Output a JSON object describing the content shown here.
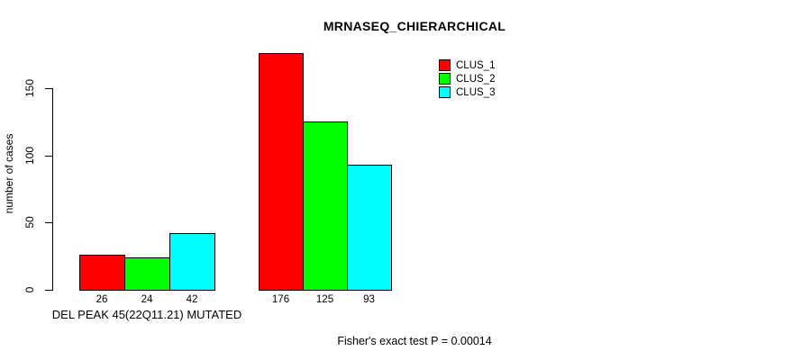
{
  "chart_data": {
    "type": "bar",
    "title": "MRNASEQ_CHIERARCHICAL",
    "ylabel": "number of cases",
    "xlabel": "",
    "categories": [
      "DEL PEAK 45(22Q11.21) MUTATED",
      ""
    ],
    "series": [
      {
        "name": "CLUS_1",
        "color": "#ff0000",
        "values": [
          26,
          176
        ]
      },
      {
        "name": "CLUS_2",
        "color": "#00ff00",
        "values": [
          24,
          125
        ]
      },
      {
        "name": "CLUS_3",
        "color": "#00ffff",
        "values": [
          42,
          93
        ]
      }
    ],
    "yticks": [
      0,
      50,
      100,
      150
    ],
    "ylim": [
      0,
      176
    ],
    "grid": false,
    "legend_position": "top-right",
    "bar_border_color": "#000000",
    "annotation": "Fisher's exact test P = 0.00014"
  },
  "labels": {
    "group1": "DEL PEAK 45(22Q11.21) MUTATED",
    "footer": "Fisher's exact test P = 0.00014"
  }
}
